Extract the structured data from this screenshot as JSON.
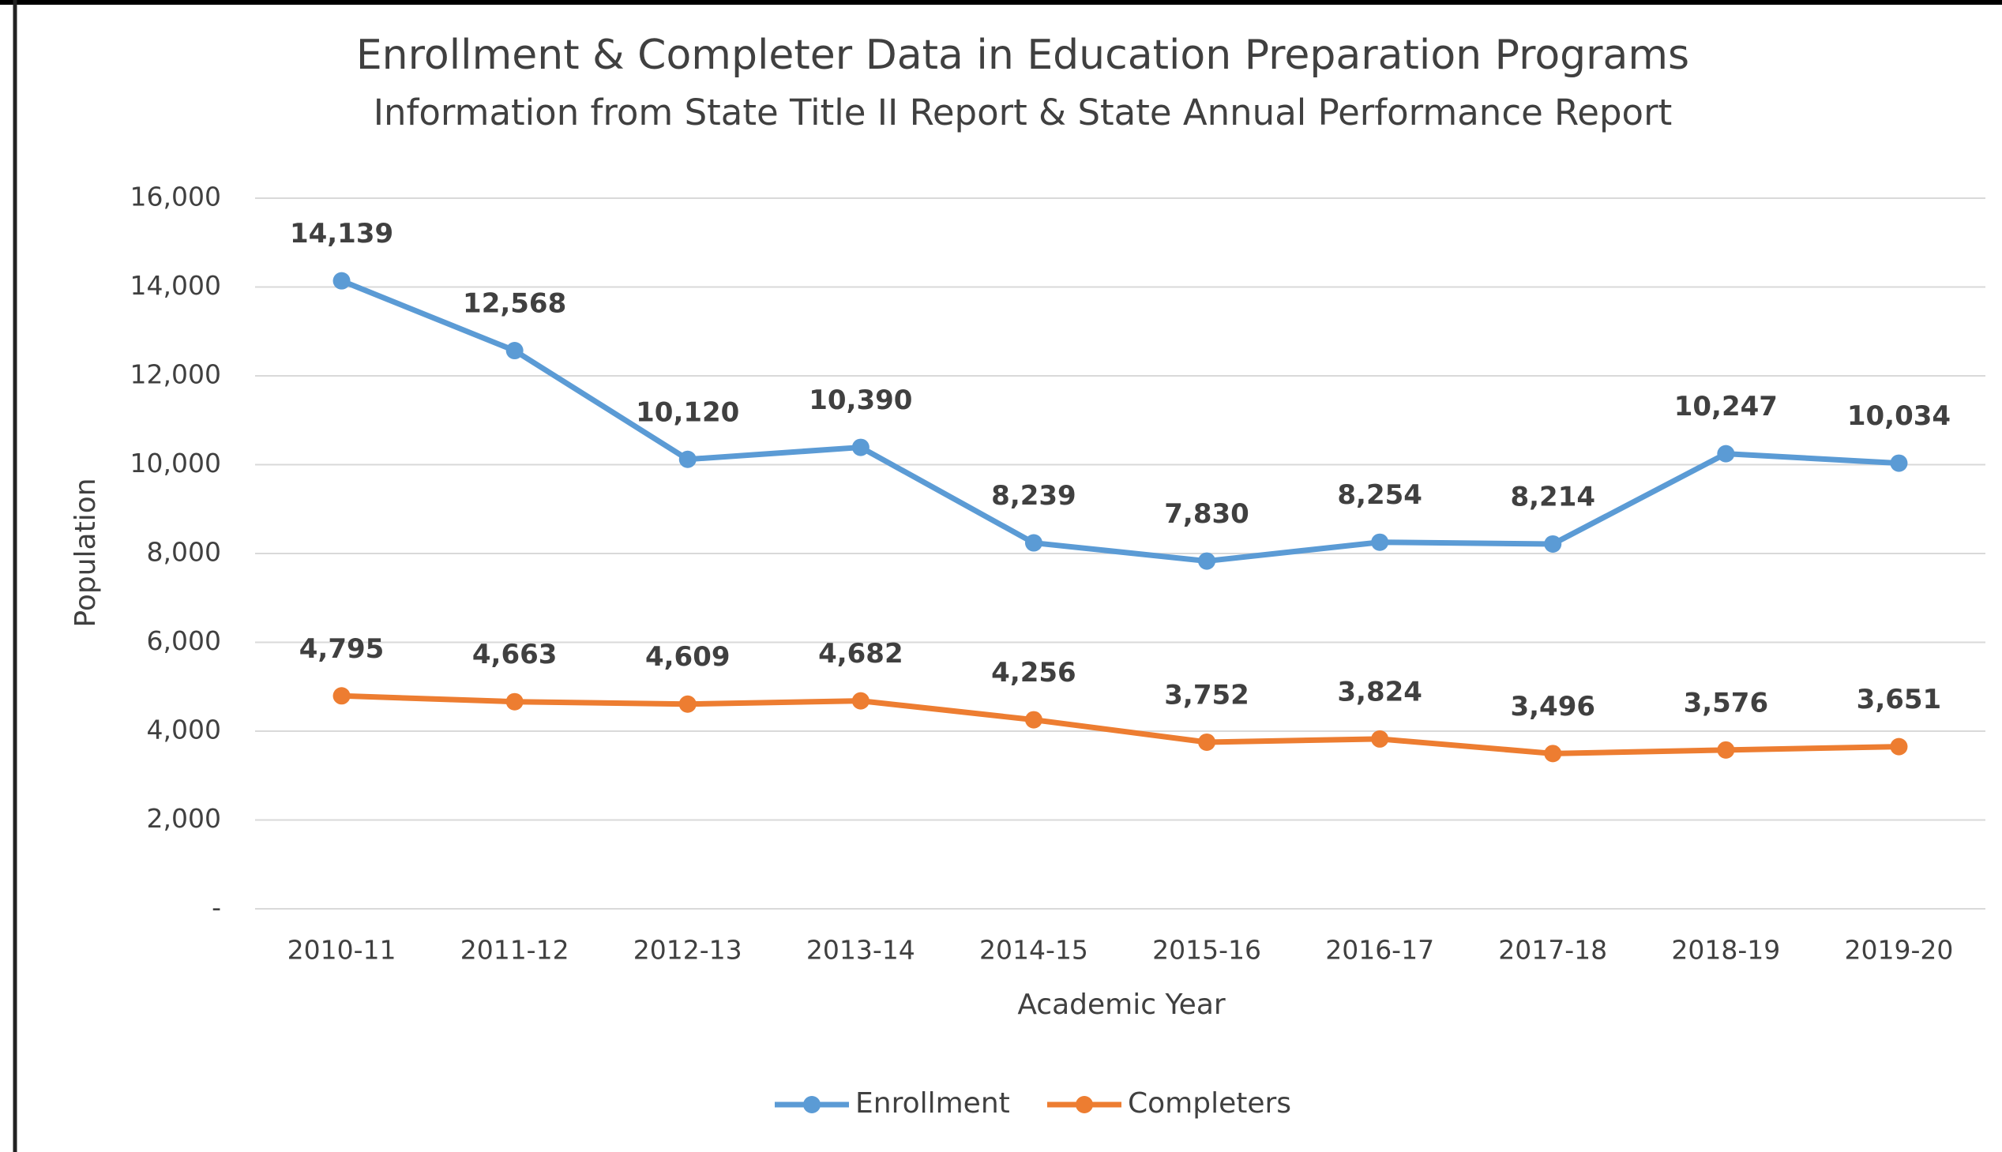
{
  "chart_data": {
    "type": "line",
    "title": "Enrollment & Completer Data in Education Preparation Programs",
    "subtitle": "Information from State Title II Report & State Annual Performance Report",
    "x_label": "Academic Year",
    "y_label": "Population",
    "categories": [
      "2010-11",
      "2011-12",
      "2012-13",
      "2013-14",
      "2014-15",
      "2015-16",
      "2016-17",
      "2017-18",
      "2018-19",
      "2019-20"
    ],
    "series": [
      {
        "name": "Enrollment",
        "color": "#5b9bd5",
        "values": [
          14139,
          12568,
          10120,
          10390,
          8239,
          7830,
          8254,
          8214,
          10247,
          10034
        ],
        "value_labels": [
          "14,139",
          "12,568",
          "10,120",
          "10,390",
          "8,239",
          "7,830",
          "8,254",
          "8,214",
          "10,247",
          "10,034"
        ]
      },
      {
        "name": "Completers",
        "color": "#ed7d31",
        "values": [
          4795,
          4663,
          4609,
          4682,
          4256,
          3752,
          3824,
          3496,
          3576,
          3651
        ],
        "value_labels": [
          "4,795",
          "4,663",
          "4,609",
          "4,682",
          "4,256",
          "3,752",
          "3,824",
          "3,496",
          "3,576",
          "3,651"
        ]
      }
    ],
    "ylim": [
      0,
      16000
    ],
    "yticks": [
      {
        "value": 0,
        "label": "-"
      },
      {
        "value": 2000,
        "label": "2,000"
      },
      {
        "value": 4000,
        "label": "4,000"
      },
      {
        "value": 6000,
        "label": "6,000"
      },
      {
        "value": 8000,
        "label": "8,000"
      },
      {
        "value": 10000,
        "label": "10,000"
      },
      {
        "value": 12000,
        "label": "12,000"
      },
      {
        "value": 14000,
        "label": "14,000"
      },
      {
        "value": 16000,
        "label": "16,000"
      }
    ],
    "grid": true,
    "legend": "bottom"
  }
}
